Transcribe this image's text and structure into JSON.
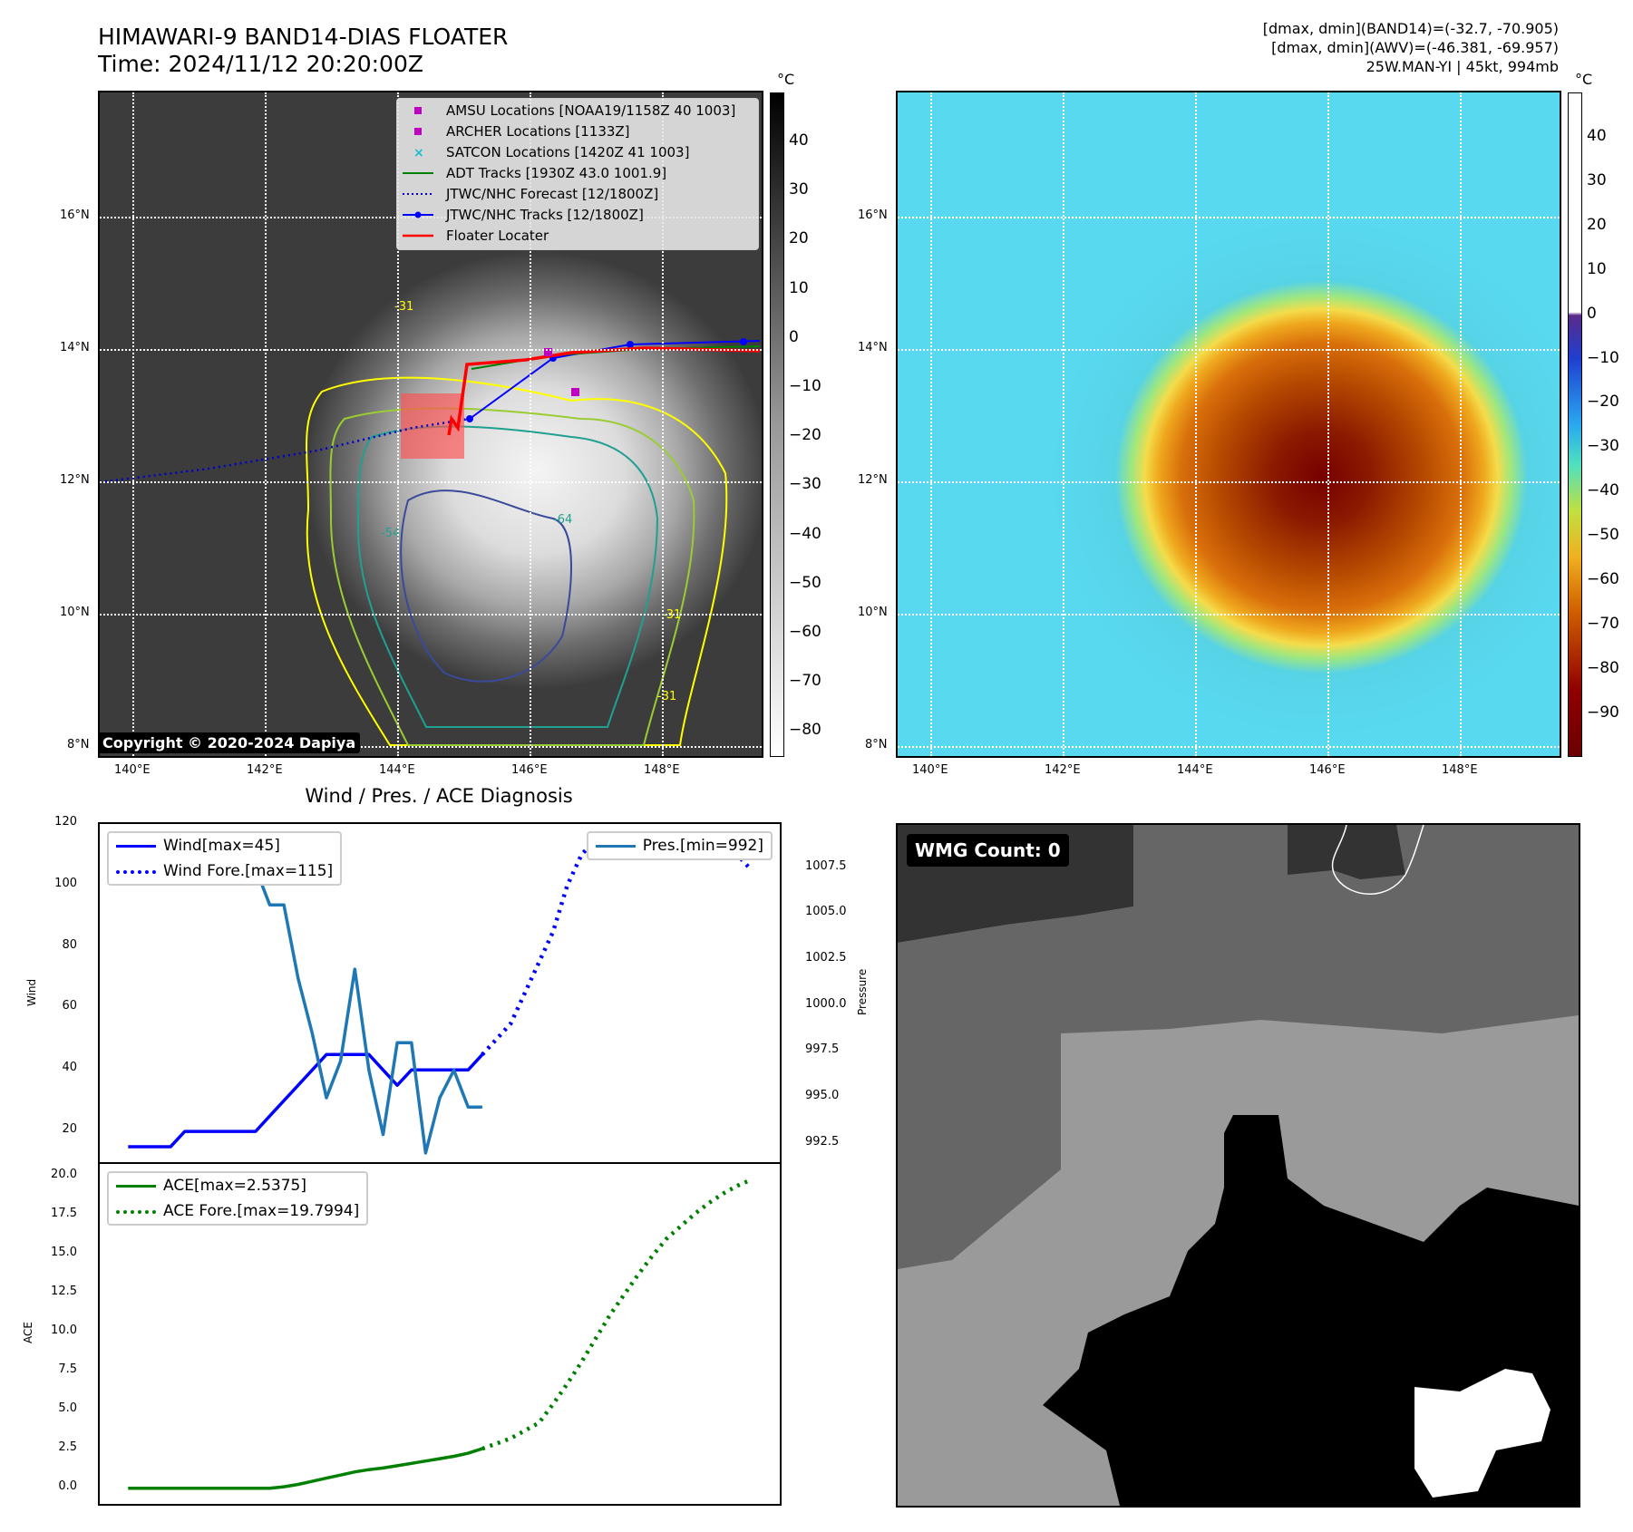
{
  "header": {
    "title_line1": "HIMAWARI-9 BAND14-DIAS FLOATER",
    "title_line2": "Time: 2024/11/12 20:20:00Z",
    "info_line1": "[dmax, dmin](BAND14)=(-32.7, -70.905)",
    "info_line2": "[dmax, dmin](AWV)=(-46.381, -69.957)",
    "info_line3": "25W.MAN-YI | 45kt, 994mb"
  },
  "map": {
    "lat_labels": [
      "16°N",
      "14°N",
      "12°N",
      "10°N",
      "8°N"
    ],
    "lon_labels": [
      "140°E",
      "142°E",
      "144°E",
      "146°E",
      "148°E"
    ],
    "copyright": "Copyright © 2020-2024 Dapiya",
    "contour_labels": [
      "-31",
      "-64",
      "-54",
      "-31",
      "-31"
    ],
    "legend": [
      {
        "label": "AMSU Locations [NOAA19/1158Z 40 1003]",
        "color": "#c000c0",
        "marker": "square"
      },
      {
        "label": "ARCHER Locations [1133Z]",
        "color": "#c000c0",
        "marker": "square"
      },
      {
        "label": "SATCON Locations [1420Z 41 1003]",
        "color": "#17becf",
        "marker": "x"
      },
      {
        "label": "ADT Tracks [1930Z 43.0 1001.9]",
        "color": "#008000",
        "marker": "line"
      },
      {
        "label": "JTWC/NHC Forecast [12/1800Z]",
        "color": "#0000cc",
        "marker": "dotted"
      },
      {
        "label": "JTWC/NHC Tracks [12/1800Z]",
        "color": "#0000ff",
        "marker": "line-dot"
      },
      {
        "label": "Floater Locater",
        "color": "#ff0000",
        "marker": "line"
      }
    ],
    "gray_cbar": {
      "unit": "°C",
      "ticks": [
        "40",
        "30",
        "20",
        "10",
        "0",
        "−10",
        "−20",
        "−30",
        "−40",
        "−50",
        "−60",
        "−70",
        "−80"
      ]
    },
    "color_cbar": {
      "unit": "°C",
      "ticks": [
        "40",
        "30",
        "20",
        "10",
        "0",
        "−10",
        "−20",
        "−30",
        "−40",
        "−50",
        "−60",
        "−70",
        "−80",
        "−90"
      ]
    }
  },
  "diagnosis": {
    "title": "Wind / Pres. / ACE Diagnosis",
    "wind_legend": [
      "Wind[max=45]",
      "Wind Fore.[max=115]"
    ],
    "pres_legend": "Pres.[min=992]",
    "ace_legend": [
      "ACE[max=2.5375]",
      "ACE Fore.[max=19.7994]"
    ],
    "wind_axis_label": "Wind",
    "pres_axis_label": "Pressure",
    "ace_axis_label": "ACE",
    "wind_ticks": [
      "120",
      "100",
      "80",
      "60",
      "40",
      "20"
    ],
    "pres_ticks": [
      "1007.5",
      "1005.0",
      "1002.5",
      "1000.0",
      "997.5",
      "995.0",
      "992.5"
    ],
    "ace_ticks": [
      "20.0",
      "17.5",
      "15.0",
      "12.5",
      "10.0",
      "7.5",
      "5.0",
      "2.5",
      "0.0"
    ]
  },
  "wmg": {
    "badge": "WMG Count: 0"
  },
  "chart_data": [
    {
      "type": "line",
      "title": "Wind / Pres. / ACE Diagnosis",
      "ylabel": "Wind",
      "ylim": [
        10,
        120
      ],
      "series": [
        {
          "name": "Wind[max=45]",
          "color": "#0000ff",
          "x": [
            0,
            2,
            3,
            4,
            5,
            6,
            7,
            8,
            9,
            10,
            11,
            12,
            13,
            14,
            15,
            16,
            17,
            18,
            19,
            20,
            21,
            22,
            23,
            24,
            25
          ],
          "values": [
            15,
            15,
            15,
            20,
            20,
            20,
            20,
            20,
            20,
            25,
            30,
            35,
            40,
            45,
            45,
            45,
            45,
            40,
            35,
            40,
            40,
            40,
            40,
            40,
            45
          ]
        },
        {
          "name": "Wind Fore.[max=115]",
          "color": "#0000ff",
          "dashed": true,
          "x": [
            25,
            26,
            27,
            28,
            29,
            30,
            31,
            32,
            33,
            34,
            35,
            36,
            37,
            38,
            39,
            40,
            41,
            42,
            43,
            44
          ],
          "values": [
            45,
            50,
            55,
            65,
            75,
            85,
            100,
            110,
            115,
            115,
            115,
            115,
            115,
            115,
            115,
            115,
            110,
            110,
            110,
            105
          ]
        }
      ]
    },
    {
      "type": "line",
      "ylabel": "Pressure",
      "ylim": [
        991.5,
        1009.9
      ],
      "series": [
        {
          "name": "Pres.[min=992]",
          "color": "#1f77b4",
          "x": [
            2,
            4,
            5,
            6,
            7,
            8,
            9,
            10,
            11,
            12,
            13,
            14,
            15,
            16,
            17,
            18,
            19,
            20,
            21,
            22,
            23,
            24,
            25
          ],
          "values": [
            1009,
            1009,
            1007,
            1007,
            1007.5,
            1007.5,
            1007.5,
            1005.5,
            1005.5,
            1001.5,
            998.5,
            995,
            997,
            1002,
            996.5,
            993,
            998,
            998,
            992,
            995,
            996.5,
            994.5,
            994.5
          ]
        }
      ]
    },
    {
      "type": "line",
      "ylabel": "ACE",
      "ylim": [
        -1,
        20.8
      ],
      "series": [
        {
          "name": "ACE[max=2.5375]",
          "color": "#008000",
          "x": [
            0,
            2,
            4,
            6,
            8,
            10,
            11,
            12,
            13,
            14,
            15,
            16,
            17,
            18,
            19,
            20,
            21,
            22,
            23,
            24,
            25
          ],
          "values": [
            0,
            0,
            0,
            0,
            0,
            0,
            0.1,
            0.25,
            0.45,
            0.65,
            0.85,
            1.05,
            1.2,
            1.3,
            1.45,
            1.6,
            1.75,
            1.9,
            2.05,
            2.25,
            2.5375
          ]
        },
        {
          "name": "ACE Fore.[max=19.7994]",
          "color": "#008000",
          "dashed": true,
          "x": [
            25,
            27,
            29,
            30,
            31,
            32,
            33,
            34,
            35,
            36,
            37,
            38,
            39,
            40,
            41,
            42,
            43,
            44
          ],
          "values": [
            2.5375,
            3.2,
            4.2,
            5.4,
            6.7,
            8.1,
            9.6,
            11.1,
            12.4,
            13.7,
            14.9,
            16.0,
            16.8,
            17.6,
            18.3,
            18.9,
            19.4,
            19.7994
          ]
        }
      ]
    }
  ]
}
